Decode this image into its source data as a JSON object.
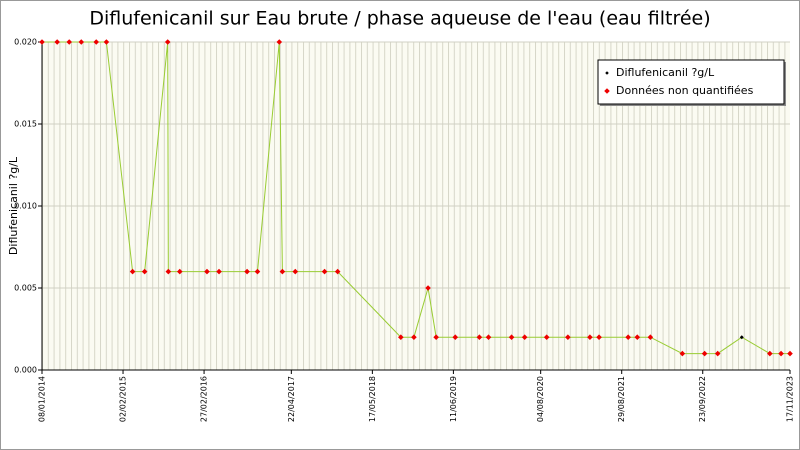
{
  "chart_data": {
    "type": "line",
    "title": "Diflufenicanil sur Eau brute / phase aqueuse de l'eau (eau filtrée)",
    "y_label": "Diflufenicanil ?g/L",
    "xlim": [
      "08/01/2014",
      "17/11/2023"
    ],
    "xticks": [
      "08/01/2014",
      "02/02/2015",
      "27/02/2016",
      "22/04/2017",
      "17/05/2018",
      "11/06/2019",
      "04/08/2020",
      "29/08/2021",
      "23/09/2022",
      "17/11/2023"
    ],
    "ylim": [
      0,
      0.02
    ],
    "yticks": [
      {
        "value": 0,
        "label": "0.000"
      },
      {
        "value": 0.005,
        "label": "0.005"
      },
      {
        "value": 0.01,
        "label": "0.010"
      },
      {
        "value": 0.015,
        "label": "0.015"
      },
      {
        "value": 0.02,
        "label": "0.020"
      }
    ],
    "grid": true,
    "legend_position": "upper right",
    "series": [
      {
        "name": "Diflufenicanil ?g/L",
        "color": "#000000",
        "line_color": "#99cc33",
        "x": [
          "08/01/2014",
          "22/03/2014",
          "19/05/2014",
          "16/07/2014",
          "26/09/2014",
          "14/11/2014",
          "20/03/2015",
          "17/05/2015",
          "05/09/2015",
          "08/09/2015",
          "02/11/2015",
          "12/03/2016",
          "09/05/2016",
          "21/09/2016",
          "10/11/2016",
          "23/02/2017",
          "10/03/2017",
          "11/05/2017",
          "29/09/2017",
          "01/12/2017",
          "01/10/2018",
          "03/12/2018",
          "09/02/2019",
          "20/03/2019",
          "20/06/2019",
          "14/10/2019",
          "27/11/2019",
          "17/03/2020",
          "19/05/2020",
          "02/09/2020",
          "13/12/2020",
          "29/03/2021",
          "12/05/2021",
          "29/09/2021",
          "12/11/2021",
          "14/01/2022",
          "17/06/2022",
          "02/10/2022",
          "04/12/2022",
          "30/03/2023",
          "12/08/2023",
          "05/10/2023",
          "17/11/2023"
        ],
        "values": [
          0.02,
          0.02,
          0.02,
          0.02,
          0.02,
          0.02,
          0.006,
          0.006,
          0.02,
          0.006,
          0.006,
          0.006,
          0.006,
          0.006,
          0.006,
          0.02,
          0.006,
          0.006,
          0.006,
          0.006,
          0.002,
          0.002,
          0.005,
          0.002,
          0.002,
          0.002,
          0.002,
          0.002,
          0.002,
          0.002,
          0.002,
          0.002,
          0.002,
          0.002,
          0.002,
          0.002,
          0.001,
          0.001,
          0.001,
          0.002,
          0.001,
          0.001,
          0.001
        ],
        "quantified": [
          false,
          false,
          false,
          false,
          false,
          false,
          false,
          false,
          false,
          false,
          false,
          false,
          false,
          false,
          false,
          false,
          false,
          false,
          false,
          false,
          false,
          false,
          false,
          false,
          false,
          false,
          false,
          false,
          false,
          false,
          false,
          false,
          false,
          false,
          false,
          false,
          false,
          false,
          false,
          true,
          false,
          false,
          false
        ]
      }
    ],
    "non_quantified": {
      "name": "Données non quantifiées",
      "color": "#ee0000"
    }
  }
}
